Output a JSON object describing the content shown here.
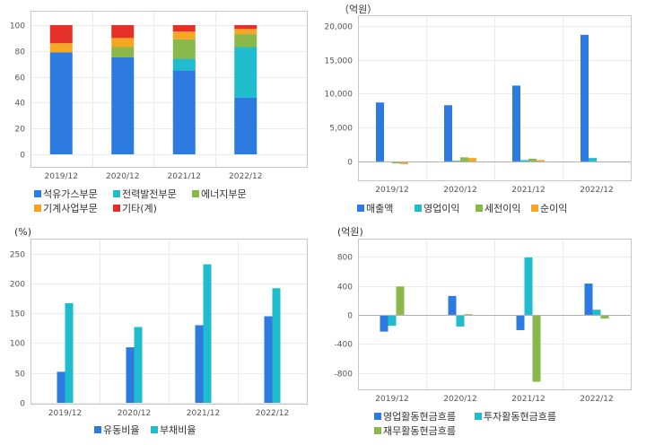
{
  "chart_data": [
    {
      "type": "bar",
      "stacked": true,
      "categories": [
        "2019/12",
        "2020/12",
        "2021/12",
        "2022/12"
      ],
      "ylim": [
        0,
        100
      ],
      "yticks": [
        0,
        20,
        40,
        60,
        80,
        100
      ],
      "series": [
        {
          "name": "석유가스부문",
          "color": "#2d7be0",
          "values": [
            79,
            75,
            65,
            44
          ]
        },
        {
          "name": "전력발전부문",
          "color": "#1fbccd",
          "values": [
            0,
            0,
            9,
            39
          ]
        },
        {
          "name": "에너지부문",
          "color": "#8ab84a",
          "values": [
            0,
            8,
            15,
            10
          ]
        },
        {
          "name": "기계사업부문",
          "color": "#f5a623",
          "values": [
            7,
            7,
            6,
            4
          ]
        },
        {
          "name": "기타(계)",
          "color": "#e5302a",
          "values": [
            14,
            10,
            5,
            3
          ]
        }
      ]
    },
    {
      "type": "bar",
      "unit": "（억원）",
      "categories": [
        "2019/12",
        "2020/12",
        "2021/12",
        "2022/12"
      ],
      "ylim": [
        -2000,
        20000
      ],
      "yticks": [
        0,
        5000,
        10000,
        15000,
        20000
      ],
      "ytick_labels": [
        "0",
        "5,000",
        "10,000",
        "15,000",
        "20,000"
      ],
      "series": [
        {
          "name": "매출액",
          "color": "#2d7be0",
          "values": [
            8700,
            8300,
            11200,
            18700
          ]
        },
        {
          "name": "영업이익",
          "color": "#1fbccd",
          "values": [
            -100,
            100,
            200,
            500
          ]
        },
        {
          "name": "세전이익",
          "color": "#8ab84a",
          "values": [
            -300,
            600,
            400,
            0
          ]
        },
        {
          "name": "순이익",
          "color": "#f5a623",
          "values": [
            -400,
            500,
            200,
            0
          ]
        }
      ]
    },
    {
      "type": "bar",
      "unit": "(%)",
      "categories": [
        "2019/12",
        "2020/12",
        "2021/12",
        "2022/12"
      ],
      "ylim": [
        0,
        260
      ],
      "yticks": [
        0,
        50,
        100,
        150,
        200,
        250
      ],
      "series": [
        {
          "name": "유동비율",
          "color": "#2d7be0",
          "values": [
            52,
            93,
            130,
            145
          ]
        },
        {
          "name": "부채비율",
          "color": "#1fbccd",
          "values": [
            167,
            127,
            232,
            192
          ]
        }
      ]
    },
    {
      "type": "bar",
      "unit": "(억원)",
      "categories": [
        "2019/12",
        "2020/12",
        "2021/12",
        "2022/12"
      ],
      "ylim": [
        -1000,
        900
      ],
      "yticks": [
        -800,
        -400,
        0,
        400,
        800
      ],
      "ytick_labels": [
        "-800",
        "-400",
        "0",
        "400",
        "800"
      ],
      "series": [
        {
          "name": "영업활동현금흐름",
          "color": "#2d7be0",
          "values": [
            -230,
            260,
            -210,
            430
          ]
        },
        {
          "name": "투자활동현금흐름",
          "color": "#1fbccd",
          "values": [
            -150,
            -160,
            790,
            70
          ]
        },
        {
          "name": "재무활동현금흐름",
          "color": "#8ab84a",
          "values": [
            390,
            10,
            -920,
            -50
          ]
        }
      ]
    }
  ]
}
